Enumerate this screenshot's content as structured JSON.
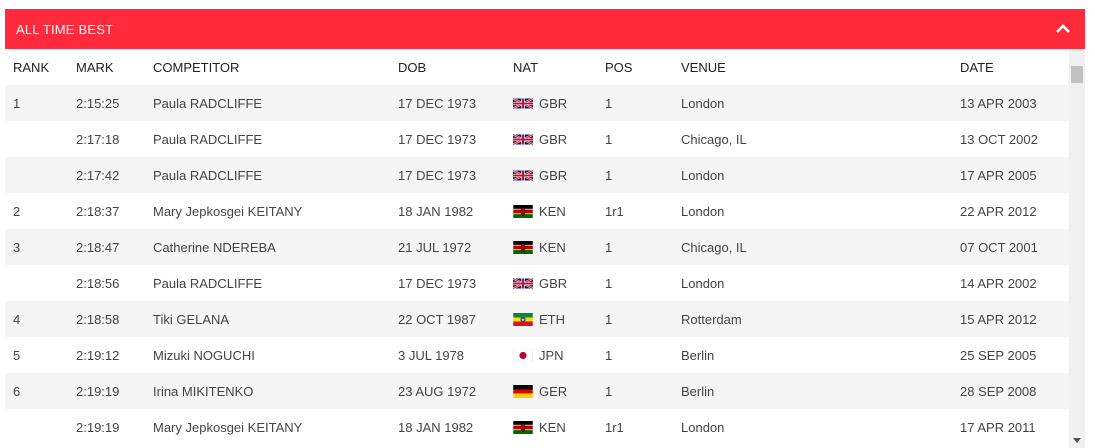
{
  "header": {
    "title": "ALL TIME BEST"
  },
  "table": {
    "columns": [
      "RANK",
      "MARK",
      "COMPETITOR",
      "DOB",
      "NAT",
      "POS",
      "VENUE",
      "DATE"
    ],
    "rows": [
      {
        "rank": "1",
        "mark": "2:15:25",
        "competitor": "Paula RADCLIFFE",
        "dob": "17 DEC 1973",
        "nat": "GBR",
        "flag": "gbr-flag-icon",
        "pos": "1",
        "venue": "London",
        "date": "13 APR 2003"
      },
      {
        "rank": "",
        "mark": "2:17:18",
        "competitor": "Paula RADCLIFFE",
        "dob": "17 DEC 1973",
        "nat": "GBR",
        "flag": "gbr-flag-icon",
        "pos": "1",
        "venue": "Chicago, IL",
        "date": "13 OCT 2002"
      },
      {
        "rank": "",
        "mark": "2:17:42",
        "competitor": "Paula RADCLIFFE",
        "dob": "17 DEC 1973",
        "nat": "GBR",
        "flag": "gbr-flag-icon",
        "pos": "1",
        "venue": "London",
        "date": "17 APR 2005"
      },
      {
        "rank": "2",
        "mark": "2:18:37",
        "competitor": "Mary Jepkosgei KEITANY",
        "dob": "18 JAN 1982",
        "nat": "KEN",
        "flag": "ken-flag-icon",
        "pos": "1r1",
        "venue": "London",
        "date": "22 APR 2012"
      },
      {
        "rank": "3",
        "mark": "2:18:47",
        "competitor": "Catherine NDEREBA",
        "dob": "21 JUL 1972",
        "nat": "KEN",
        "flag": "ken-flag-icon",
        "pos": "1",
        "venue": "Chicago, IL",
        "date": "07 OCT 2001"
      },
      {
        "rank": "",
        "mark": "2:18:56",
        "competitor": "Paula RADCLIFFE",
        "dob": "17 DEC 1973",
        "nat": "GBR",
        "flag": "gbr-flag-icon",
        "pos": "1",
        "venue": "London",
        "date": "14 APR 2002"
      },
      {
        "rank": "4",
        "mark": "2:18:58",
        "competitor": "Tiki GELANA",
        "dob": "22 OCT 1987",
        "nat": "ETH",
        "flag": "eth-flag-icon",
        "pos": "1",
        "venue": "Rotterdam",
        "date": "15 APR 2012"
      },
      {
        "rank": "5",
        "mark": "2:19:12",
        "competitor": "Mizuki NOGUCHI",
        "dob": "3 JUL 1978",
        "nat": "JPN",
        "flag": "jpn-flag-icon",
        "pos": "1",
        "venue": "Berlin",
        "date": "25 SEP 2005"
      },
      {
        "rank": "6",
        "mark": "2:19:19",
        "competitor": "Irina MIKITENKO",
        "dob": "23 AUG 1972",
        "nat": "GER",
        "flag": "ger-flag-icon",
        "pos": "1",
        "venue": "Berlin",
        "date": "28 SEP 2008"
      },
      {
        "rank": "",
        "mark": "2:19:19",
        "competitor": "Mary Jepkosgei KEITANY",
        "dob": "18 JAN 1982",
        "nat": "KEN",
        "flag": "ken-flag-icon",
        "pos": "1r1",
        "venue": "London",
        "date": "17 APR 2011"
      }
    ]
  },
  "colors": {
    "header_bg": "#ff2a3b",
    "row_alt": "#f5f5f5"
  }
}
